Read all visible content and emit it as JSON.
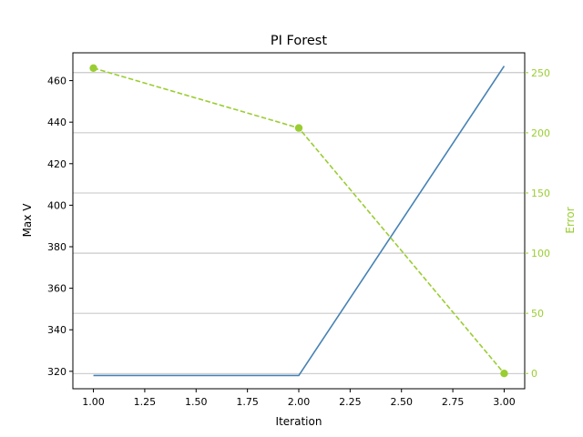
{
  "chart_data": {
    "type": "line",
    "title": "PI Forest",
    "xlabel": "Iteration",
    "ylabel": "Max V",
    "y2label": "Error",
    "x": [
      1,
      2,
      3
    ],
    "xlim": [
      0.9,
      3.1
    ],
    "xticks": [
      "1.00",
      "1.25",
      "1.50",
      "1.75",
      "2.00",
      "2.25",
      "2.50",
      "2.75",
      "3.00"
    ],
    "ylim": [
      311.6,
      473.4
    ],
    "yticks": [
      "320",
      "340",
      "360",
      "380",
      "400",
      "420",
      "440",
      "460"
    ],
    "y2lim": [
      -12.7,
      266.5
    ],
    "y2ticks": [
      "0",
      "50",
      "100",
      "150",
      "200",
      "250"
    ],
    "grid": "right-axis horizontal",
    "colors": {
      "left": "#4682b4",
      "right": "#9acd32",
      "grid": "#b0b0b0",
      "axis": "#000000"
    },
    "series": [
      {
        "axis": "left",
        "style": "solid",
        "values": [
          318,
          318,
          467
        ]
      },
      {
        "axis": "right",
        "style": "dashed",
        "marker": "circle",
        "values": [
          253.8,
          204.0,
          0.0
        ]
      }
    ]
  }
}
